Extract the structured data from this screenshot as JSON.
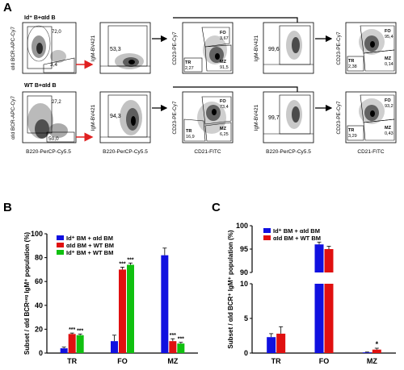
{
  "figure_title": "",
  "panels": {
    "A": {
      "label": "A",
      "rows": [
        {
          "condition": "Id⁺ B+αId B",
          "plot1": {
            "xlabel": "B220-PerCP-Cy5.5",
            "ylabel": "αId BCR-APC-Cy7",
            "gate_upper": "72,0",
            "gate_lower": "3,4"
          },
          "plot2": {
            "ylabel": "IgM-BV421",
            "gate": "53,3"
          },
          "plot3": {
            "xlabel": "CD21-FITC",
            "ylabel": "CD23-PE-Cy7",
            "FO_label": "FO",
            "FO_value": "3,67",
            "MZ_label": "MZ",
            "MZ_value": "91,5",
            "TR_label": "TR",
            "TR_value": "2,27"
          },
          "plot4": {
            "xlabel": "B220-PerCP-Cy5.5",
            "ylabel": "IgM-BV421",
            "gate": "99,6"
          },
          "plot5": {
            "xlabel": "CD21-FITC",
            "ylabel": "CD23-PE-Cy7",
            "FO_label": "FO",
            "FO_value": "95,4",
            "MZ_label": "MZ",
            "MZ_value": "0,14",
            "TR_label": "TR",
            "TR_value": "2,38"
          }
        },
        {
          "condition": "WT B+αId B",
          "plot1": {
            "xlabel": "B220-PerCP-Cy5.5",
            "ylabel": "αId BCR-APC-Cy7",
            "gate_upper": "27,2",
            "gate_lower": "50,0"
          },
          "plot2": {
            "xlabel": "B220-PerCP-Cy5.5",
            "ylabel": "IgM-BV421",
            "gate": "94,3"
          },
          "plot3": {
            "xlabel": "CD21-FITC",
            "ylabel": "CD23-PE-Cy7",
            "FO_label": "FO",
            "FO_value": "73,4",
            "MZ_label": "MZ",
            "MZ_value": "6,25",
            "TR_label": "TR",
            "TR_value": "16,9"
          },
          "plot4": {
            "xlabel": "B220-PerCP-Cy5.5",
            "ylabel": "IgM-BV421",
            "gate": "99,7"
          },
          "plot5": {
            "xlabel": "CD21-FITC",
            "ylabel": "CD23-PE-Cy7",
            "FO_label": "FO",
            "FO_value": "93,2",
            "MZ_label": "MZ",
            "MZ_value": "0,43",
            "TR_label": "TR",
            "TR_value": "3,29"
          }
        }
      ]
    },
    "B": {
      "label": "B"
    },
    "C": {
      "label": "C"
    }
  },
  "chart_data": [
    {
      "panel": "B",
      "type": "bar",
      "categories": [
        "TR",
        "FO",
        "MZ"
      ],
      "series": [
        {
          "name": "Id⁺ BM + αId BM",
          "color": "#1010e0",
          "values": [
            4,
            10,
            82
          ],
          "errors": [
            1,
            5,
            6
          ],
          "stars": [
            "",
            "",
            ""
          ]
        },
        {
          "name": "αId BM + WT BM",
          "color": "#e01010",
          "values": [
            16,
            70,
            10
          ],
          "errors": [
            0.8,
            2,
            2
          ],
          "stars": [
            "***",
            "***",
            "***"
          ]
        },
        {
          "name": "Id⁺ BM + WT BM",
          "color": "#10c010",
          "values": [
            15,
            74,
            8
          ],
          "errors": [
            1,
            1.5,
            1
          ],
          "stars": [
            "***",
            "***",
            "***"
          ]
        }
      ],
      "ylabel": "Subset / αId BCRⁿᵉᵍ IgM⁺ population (%)",
      "ylim": [
        0,
        100
      ],
      "yticks": [
        "0",
        "20",
        "40",
        "60",
        "80",
        "100"
      ],
      "legend_position": "top-left"
    },
    {
      "panel": "C",
      "type": "bar",
      "categories": [
        "TR",
        "FO",
        "MZ"
      ],
      "series": [
        {
          "name": "Id⁺ BM + αId BM",
          "color": "#1010e0",
          "values": [
            2.3,
            96,
            0.1
          ],
          "errors": [
            0.5,
            0.5,
            0.05
          ],
          "stars": [
            "",
            "",
            ""
          ]
        },
        {
          "name": "αId BM + WT BM",
          "color": "#e01010",
          "values": [
            2.8,
            95,
            0.5
          ],
          "errors": [
            1,
            0.6,
            0.2
          ],
          "stars": [
            "",
            "",
            "*"
          ]
        }
      ],
      "ylabel": "Subset / αId BCR⁺ IgM⁺ population (%)",
      "axis_break": {
        "lower": [
          0,
          10
        ],
        "upper": [
          90,
          100
        ]
      },
      "yticks_lower": [
        "0",
        "5",
        "10"
      ],
      "yticks_upper": [
        "90",
        "95",
        "100"
      ],
      "legend_position": "top-left"
    }
  ]
}
